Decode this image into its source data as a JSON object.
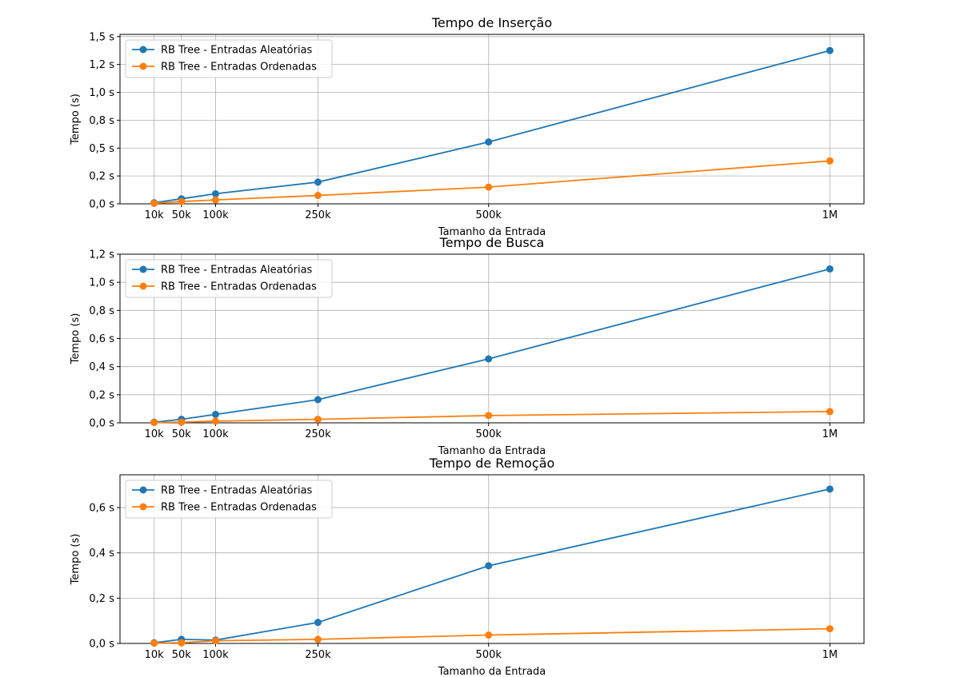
{
  "chart_data": [
    {
      "type": "line",
      "title": "Tempo de Inserção",
      "xlabel": "Tamanho da Entrada",
      "ylabel": "Tempo (s)",
      "x": [
        10000,
        50000,
        100000,
        250000,
        500000,
        1000000
      ],
      "x_tick_labels": [
        "10k",
        "50k",
        "100k",
        "250k",
        "500k",
        "1M"
      ],
      "y_ticks": [
        0,
        0.25,
        0.5,
        0.75,
        1.0,
        1.25,
        1.5
      ],
      "y_tick_labels": [
        "0,0 s",
        "0,2 s",
        "0,5 s",
        "0,8 s",
        "1,0 s",
        "1,2 s",
        "1,5 s"
      ],
      "ylim": [
        0,
        1.52
      ],
      "xlim": [
        -40000,
        1050000
      ],
      "grid": true,
      "legend_position": "upper-left",
      "series": [
        {
          "name": "RB Tree - Entradas Aleatórias",
          "color": "#1f77b4",
          "values": [
            0.01,
            0.045,
            0.09,
            0.195,
            0.555,
            1.375
          ]
        },
        {
          "name": "RB Tree - Entradas Ordenadas",
          "color": "#ff7f0e",
          "values": [
            0.005,
            0.02,
            0.035,
            0.075,
            0.15,
            0.385
          ]
        }
      ]
    },
    {
      "type": "line",
      "title": "Tempo de Busca",
      "xlabel": "Tamanho da Entrada",
      "ylabel": "Tempo (s)",
      "x": [
        10000,
        50000,
        100000,
        250000,
        500000,
        1000000
      ],
      "x_tick_labels": [
        "10k",
        "50k",
        "100k",
        "250k",
        "500k",
        "1M"
      ],
      "y_ticks": [
        0,
        0.2,
        0.4,
        0.6,
        0.8,
        1.0,
        1.2
      ],
      "y_tick_labels": [
        "0,0 s",
        "0,2 s",
        "0,4 s",
        "0,6 s",
        "0,8 s",
        "1,0 s",
        "1,2 s"
      ],
      "ylim": [
        0,
        1.2
      ],
      "xlim": [
        -40000,
        1050000
      ],
      "grid": true,
      "legend_position": "upper-left",
      "series": [
        {
          "name": "RB Tree - Entradas Aleatórias",
          "color": "#1f77b4",
          "values": [
            0.005,
            0.025,
            0.06,
            0.165,
            0.455,
            1.095
          ]
        },
        {
          "name": "RB Tree - Entradas Ordenadas",
          "color": "#ff7f0e",
          "values": [
            0.002,
            0.005,
            0.012,
            0.025,
            0.052,
            0.08
          ]
        }
      ]
    },
    {
      "type": "line",
      "title": "Tempo de Remoção",
      "xlabel": "Tamanho da Entrada",
      "ylabel": "Tempo (s)",
      "x": [
        10000,
        50000,
        100000,
        250000,
        500000,
        1000000
      ],
      "x_tick_labels": [
        "10k",
        "50k",
        "100k",
        "250k",
        "500k",
        "1M"
      ],
      "y_ticks": [
        0,
        0.2,
        0.4,
        0.6
      ],
      "y_tick_labels": [
        "0,0 s",
        "0,2 s",
        "0,4 s",
        "0,6 s"
      ],
      "ylim": [
        0,
        0.745
      ],
      "xlim": [
        -40000,
        1050000
      ],
      "grid": true,
      "legend_position": "upper-left",
      "series": [
        {
          "name": "RB Tree - Entradas Aleatórias",
          "color": "#1f77b4",
          "values": [
            0.003,
            0.018,
            0.015,
            0.093,
            0.343,
            0.682
          ]
        },
        {
          "name": "RB Tree - Entradas Ordenadas",
          "color": "#ff7f0e",
          "values": [
            0.001,
            0.003,
            0.012,
            0.018,
            0.037,
            0.065
          ]
        }
      ]
    }
  ]
}
